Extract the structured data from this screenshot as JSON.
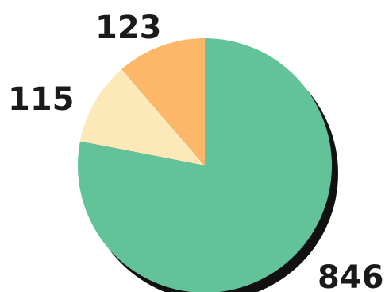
{
  "chart_data": {
    "type": "pie",
    "title": "",
    "legend": "none",
    "slices": [
      {
        "label": "846",
        "value": 846,
        "color": "#62c39b"
      },
      {
        "label": "115",
        "value": 115,
        "color": "#fde9b8"
      },
      {
        "label": "123",
        "value": 123,
        "color": "#fdb768"
      }
    ],
    "shadow_color": "#111111"
  }
}
